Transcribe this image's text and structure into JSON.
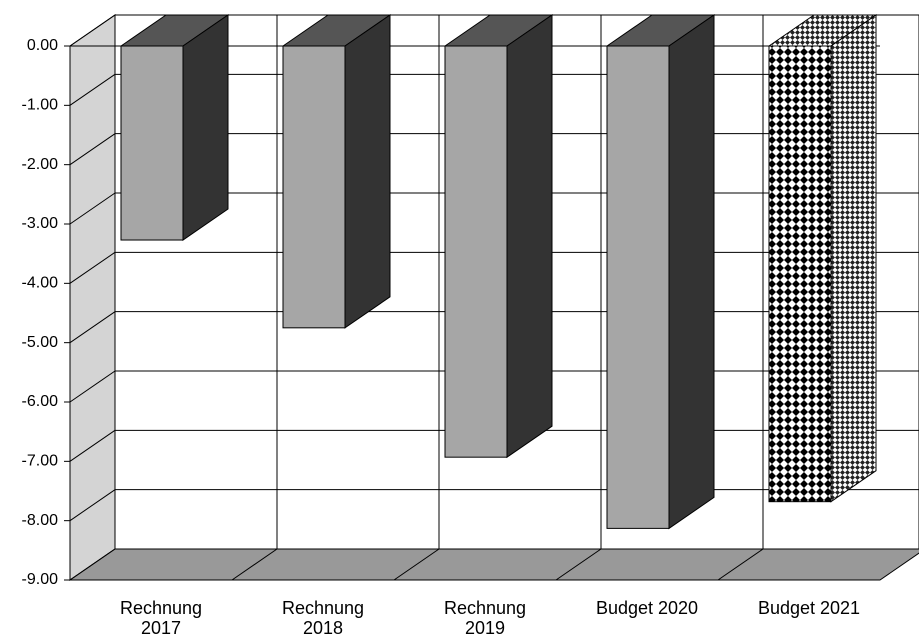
{
  "chart_data": {
    "type": "bar3d",
    "categories": [
      "Rechnung 2017",
      "Rechnung 2018",
      "Rechnung 2019",
      "Budget 2020",
      "Budget 2021"
    ],
    "values": [
      -3.27,
      -4.75,
      -6.93,
      -8.13,
      -7.68
    ],
    "color": "#a6a6a6",
    "point_fills": [
      "solid",
      "solid",
      "solid",
      "solid",
      "diamond"
    ],
    "ylim": [
      -9,
      0
    ],
    "yticks": [
      {
        "value": 0,
        "label": "0.00"
      },
      {
        "value": -1,
        "label": "-1.00"
      },
      {
        "value": -2,
        "label": "-2.00"
      },
      {
        "value": -3,
        "label": "-3.00"
      },
      {
        "value": -4,
        "label": "-4.00"
      },
      {
        "value": -5,
        "label": "-5.00"
      },
      {
        "value": -6,
        "label": "-6.00"
      },
      {
        "value": -7,
        "label": "-7.00"
      },
      {
        "value": -8,
        "label": "-8.00"
      },
      {
        "value": -9,
        "label": "-9.00"
      }
    ],
    "grid": true
  }
}
